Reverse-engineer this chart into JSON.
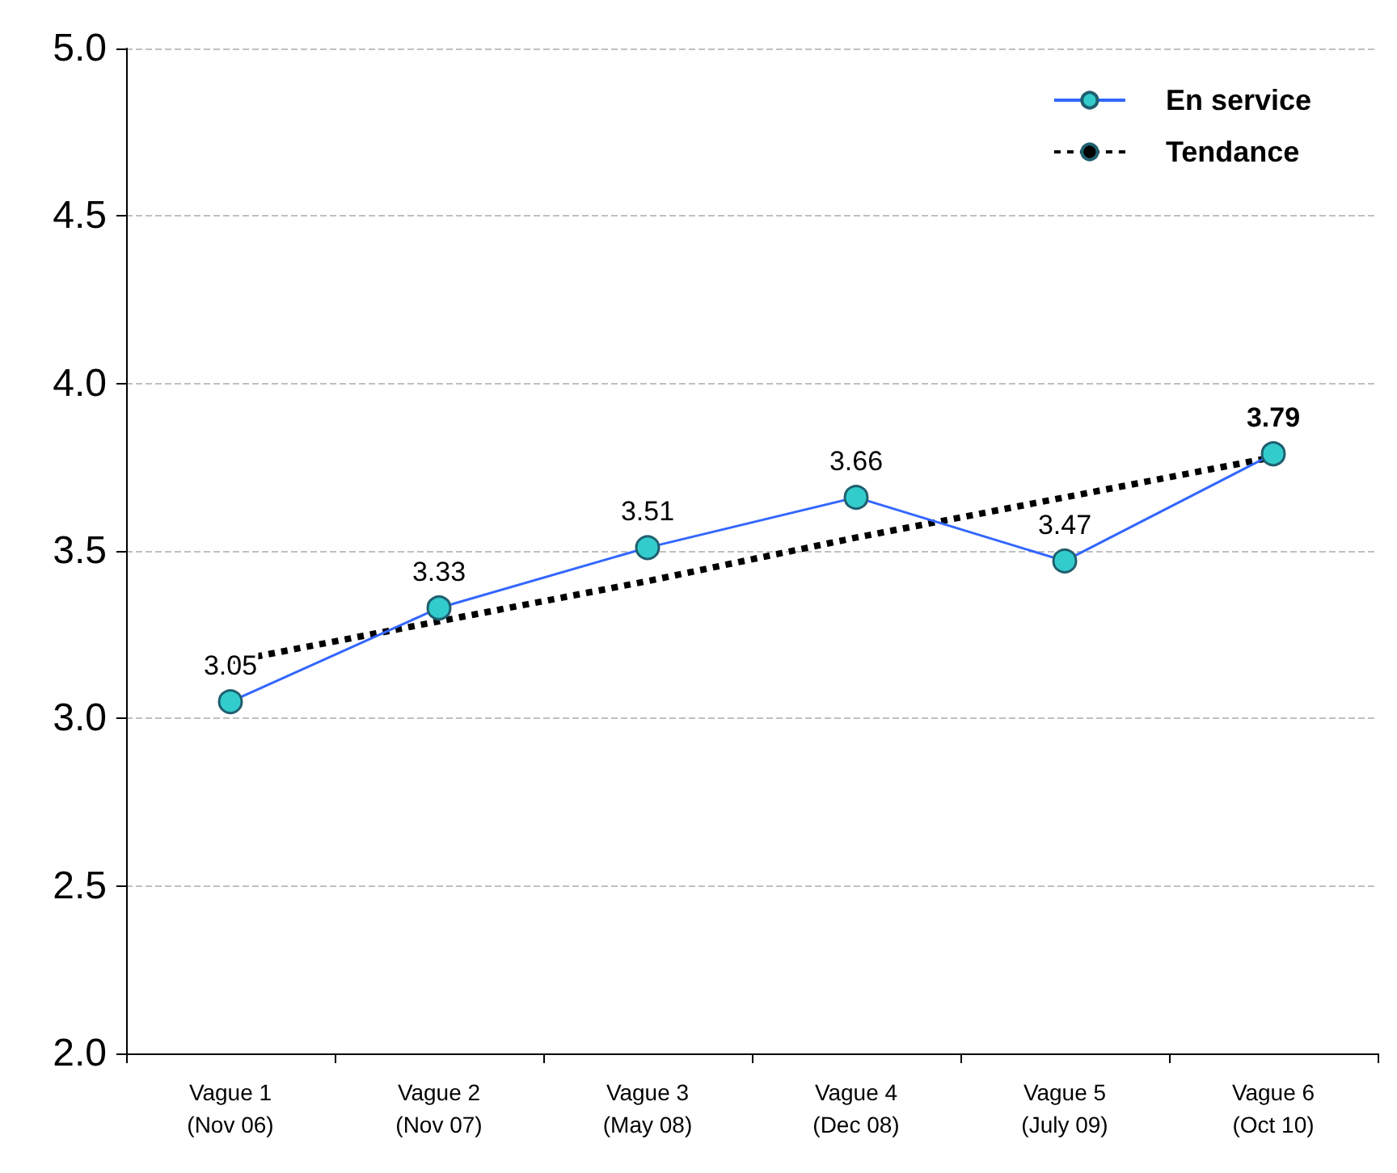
{
  "chart_data": {
    "type": "line",
    "categories": [
      "Vague 1\n(Nov 06)",
      "Vague 2\n(Nov 07)",
      "Vague 3\n(May 08)",
      "Vague 4\n(Dec 08)",
      "Vague 5\n(July 09)",
      "Vague 6\n(Oct 10)"
    ],
    "series": [
      {
        "name": "En service",
        "color": "#3366ff",
        "values": [
          3.05,
          3.33,
          3.51,
          3.66,
          3.47,
          3.79
        ],
        "marker": "circle",
        "line_style": "solid",
        "data_labels": true
      },
      {
        "name": "Tendance",
        "color": "#000000",
        "values": [
          3.17,
          3.29,
          3.41,
          3.54,
          3.66,
          3.78
        ],
        "marker": "none",
        "line_style": "dashed"
      }
    ],
    "ylim": [
      2.0,
      5.0
    ],
    "yticks": [
      {
        "value": 2,
        "label": "2.0"
      },
      {
        "value": 2.5,
        "label": "2.5"
      },
      {
        "value": 3,
        "label": "3.0"
      },
      {
        "value": 3.5,
        "label": "3.5"
      },
      {
        "value": 4,
        "label": "4.0"
      },
      {
        "value": 4.5,
        "label": "4.5"
      },
      {
        "value": 5,
        "label": "5.0"
      }
    ],
    "grid": "y",
    "legend": "top right"
  }
}
